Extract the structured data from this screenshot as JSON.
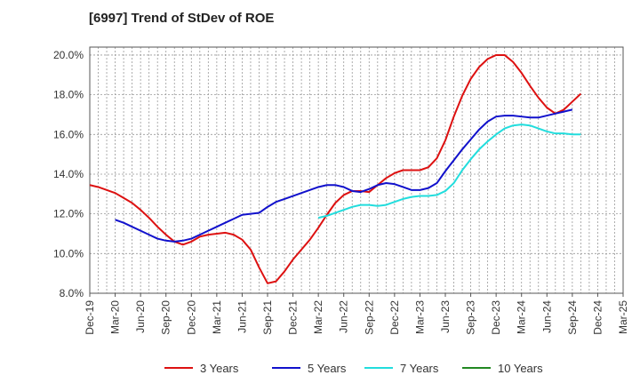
{
  "chart_data": {
    "type": "line",
    "title": "[6997]  Trend of StDev of ROE",
    "xlabel": "",
    "ylabel": "",
    "ylim": [
      8.0,
      20.4
    ],
    "y_ticks": [
      8.0,
      10.0,
      12.0,
      14.0,
      16.0,
      18.0,
      20.0
    ],
    "y_tick_labels": [
      "8.0%",
      "10.0%",
      "12.0%",
      "14.0%",
      "16.0%",
      "18.0%",
      "20.0%"
    ],
    "x_ticks": [
      "Dec-19",
      "Mar-20",
      "Jun-20",
      "Sep-20",
      "Dec-20",
      "Mar-21",
      "Jun-21",
      "Sep-21",
      "Dec-21",
      "Mar-22",
      "Jun-22",
      "Sep-22",
      "Dec-22",
      "Mar-23",
      "Jun-23",
      "Sep-23",
      "Dec-23",
      "Mar-24",
      "Jun-24",
      "Sep-24",
      "Dec-24",
      "Mar-25"
    ],
    "grid": true,
    "legend_position": "bottom",
    "series": [
      {
        "name": "3 Years",
        "color": "#dd1111",
        "start_month_index": 0,
        "values": [
          13.45,
          13.35,
          13.2,
          13.05,
          12.8,
          12.55,
          12.2,
          11.8,
          11.35,
          10.95,
          10.6,
          10.45,
          10.6,
          10.85,
          10.95,
          11.0,
          11.05,
          10.95,
          10.7,
          10.2,
          9.3,
          8.5,
          8.6,
          9.1,
          9.7,
          10.2,
          10.7,
          11.3,
          11.95,
          12.55,
          12.95,
          13.15,
          13.15,
          13.1,
          13.45,
          13.8,
          14.05,
          14.2,
          14.2,
          14.2,
          14.35,
          14.8,
          15.7,
          16.9,
          17.95,
          18.8,
          19.4,
          19.8,
          20.0,
          20.0,
          19.65,
          19.1,
          18.45,
          17.85,
          17.35,
          17.05,
          17.25,
          17.65,
          18.05
        ]
      },
      {
        "name": "5 Years",
        "color": "#1111cc",
        "start_month_index": 3,
        "values": [
          11.7,
          11.55,
          11.35,
          11.15,
          10.95,
          10.75,
          10.65,
          10.6,
          10.65,
          10.75,
          10.95,
          11.15,
          11.35,
          11.55,
          11.75,
          11.95,
          12.0,
          12.05,
          12.35,
          12.6,
          12.75,
          12.9,
          13.05,
          13.2,
          13.35,
          13.45,
          13.45,
          13.35,
          13.15,
          13.1,
          13.25,
          13.45,
          13.55,
          13.5,
          13.35,
          13.2,
          13.2,
          13.3,
          13.55,
          14.15,
          14.7,
          15.25,
          15.75,
          16.25,
          16.65,
          16.9,
          16.95,
          16.95,
          16.9,
          16.85,
          16.85,
          16.95,
          17.05,
          17.15,
          17.25
        ]
      },
      {
        "name": "7 Years",
        "color": "#22dddd",
        "start_month_index": 27,
        "values": [
          11.8,
          11.9,
          12.05,
          12.2,
          12.35,
          12.45,
          12.45,
          12.4,
          12.45,
          12.6,
          12.75,
          12.85,
          12.9,
          12.9,
          12.95,
          13.15,
          13.55,
          14.2,
          14.75,
          15.25,
          15.65,
          16.0,
          16.3,
          16.45,
          16.5,
          16.45,
          16.3,
          16.15,
          16.05,
          16.05,
          16.0,
          16.0
        ]
      },
      {
        "name": "10 Years",
        "color": "#228822",
        "start_month_index": 0,
        "values": []
      }
    ]
  }
}
